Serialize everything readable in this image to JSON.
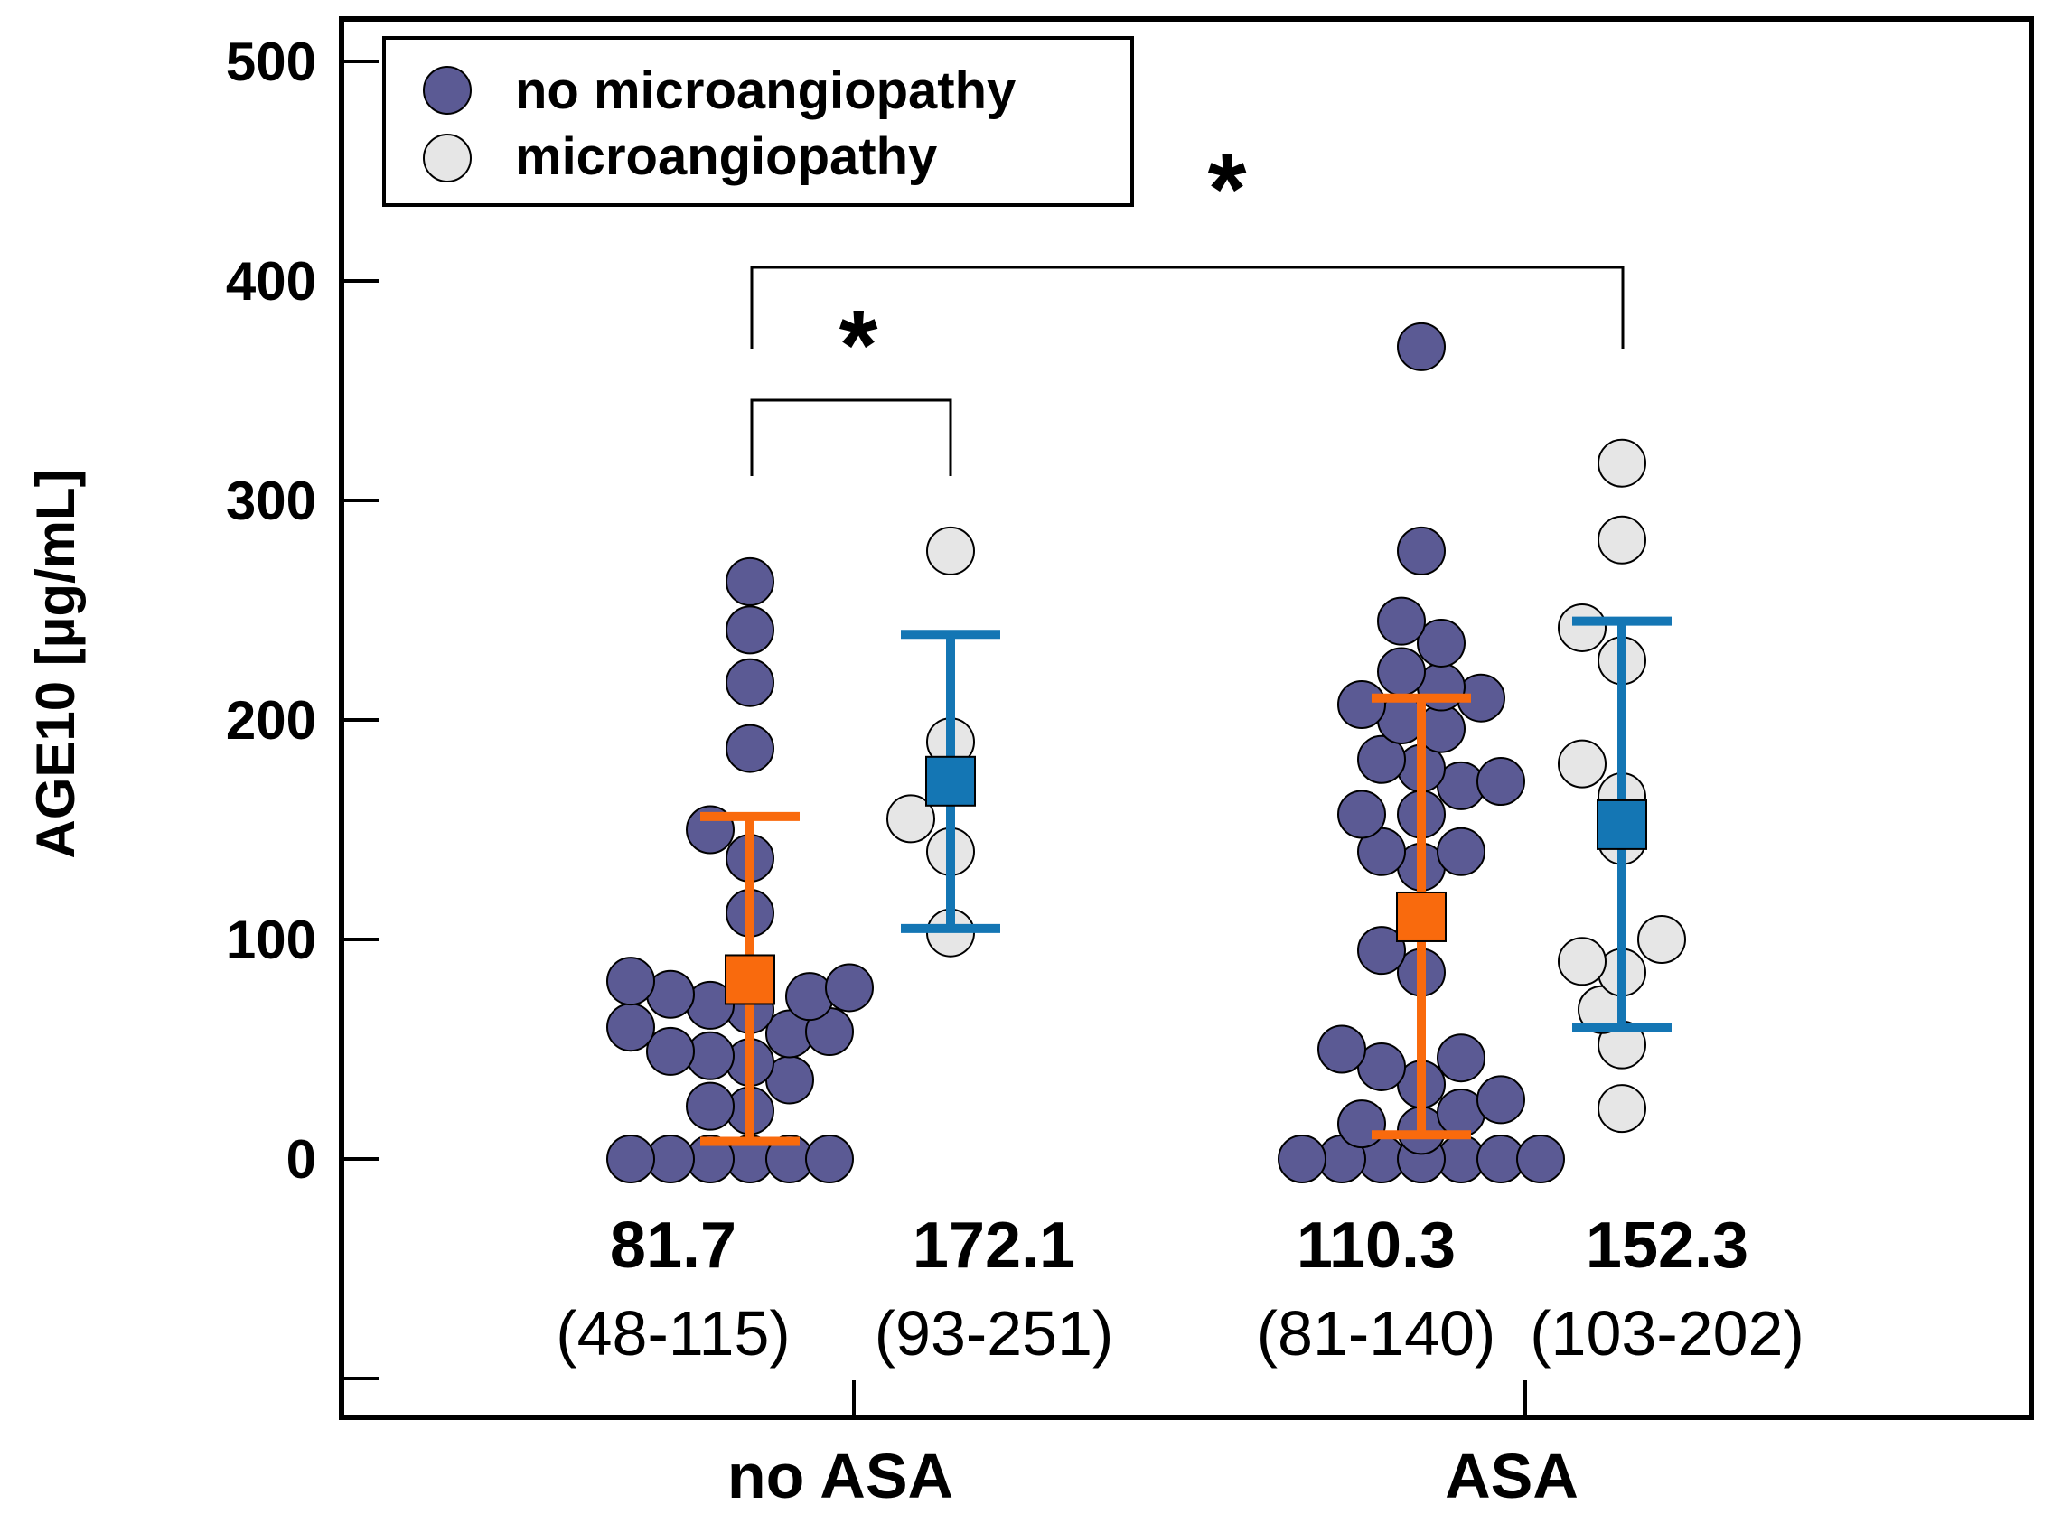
{
  "chart_data": {
    "type": "scatter",
    "ylabel": "AGE10 [µg/mL]",
    "ylim": [
      -100,
      500
    ],
    "yticks": [
      0,
      100,
      200,
      300,
      400,
      500
    ],
    "groups": [
      {
        "label": "no ASA"
      },
      {
        "label": "ASA"
      }
    ],
    "legend": {
      "position": "top-left",
      "entries": [
        {
          "label": "no microangiopathy",
          "color": "#5b5a94"
        },
        {
          "label": "microangiopathy",
          "color": "#e6e6e6"
        }
      ]
    },
    "series": [
      {
        "name": "no microangiopathy",
        "group": "no ASA",
        "color": "#5b5a94",
        "summary_color": "#f96a0d",
        "median": 81.7,
        "median_label": "81.7",
        "iqr_label": "(48-115)",
        "error_low": 8,
        "error_high": 156,
        "points": [
          263,
          241,
          217,
          187,
          150,
          137,
          112,
          81,
          78,
          75,
          74,
          70,
          68,
          60,
          58,
          57,
          49,
          47,
          44,
          36,
          24,
          22,
          0,
          0,
          0,
          0,
          0,
          0
        ]
      },
      {
        "name": "microangiopathy",
        "group": "no ASA",
        "color": "#e6e6e6",
        "summary_color": "#1476b4",
        "median": 172.1,
        "median_label": "172.1",
        "iqr_label": "(93-251)",
        "error_low": 105,
        "error_high": 239,
        "points": [
          277,
          190,
          155,
          140,
          103
        ]
      },
      {
        "name": "no microangiopathy",
        "group": "ASA",
        "color": "#5b5a94",
        "summary_color": "#f96a0d",
        "median": 110.3,
        "median_label": "110.3",
        "iqr_label": "(81-140)",
        "error_low": 11,
        "error_high": 210,
        "points": [
          370,
          277,
          245,
          235,
          222,
          215,
          210,
          207,
          200,
          196,
          182,
          178,
          172,
          170,
          157,
          157,
          140,
          140,
          133,
          95,
          85,
          50,
          46,
          42,
          34,
          27,
          21,
          16,
          13,
          0,
          0,
          0,
          0,
          0,
          0,
          0,
          0
        ]
      },
      {
        "name": "microangiopathy",
        "group": "ASA",
        "color": "#e6e6e6",
        "summary_color": "#1476b4",
        "median": 152.3,
        "median_label": "152.3",
        "iqr_label": "(103-202)",
        "error_low": 60,
        "error_high": 245,
        "points": [
          317,
          282,
          242,
          227,
          180,
          165,
          145,
          100,
          90,
          85,
          68,
          52,
          23
        ]
      }
    ],
    "significance": [
      {
        "label": "*",
        "from": "no ASA · no microangiopathy",
        "to": "no ASA · microangiopathy"
      },
      {
        "label": "*",
        "from": "no ASA · no microangiopathy",
        "to": "ASA · microangiopathy"
      }
    ]
  }
}
